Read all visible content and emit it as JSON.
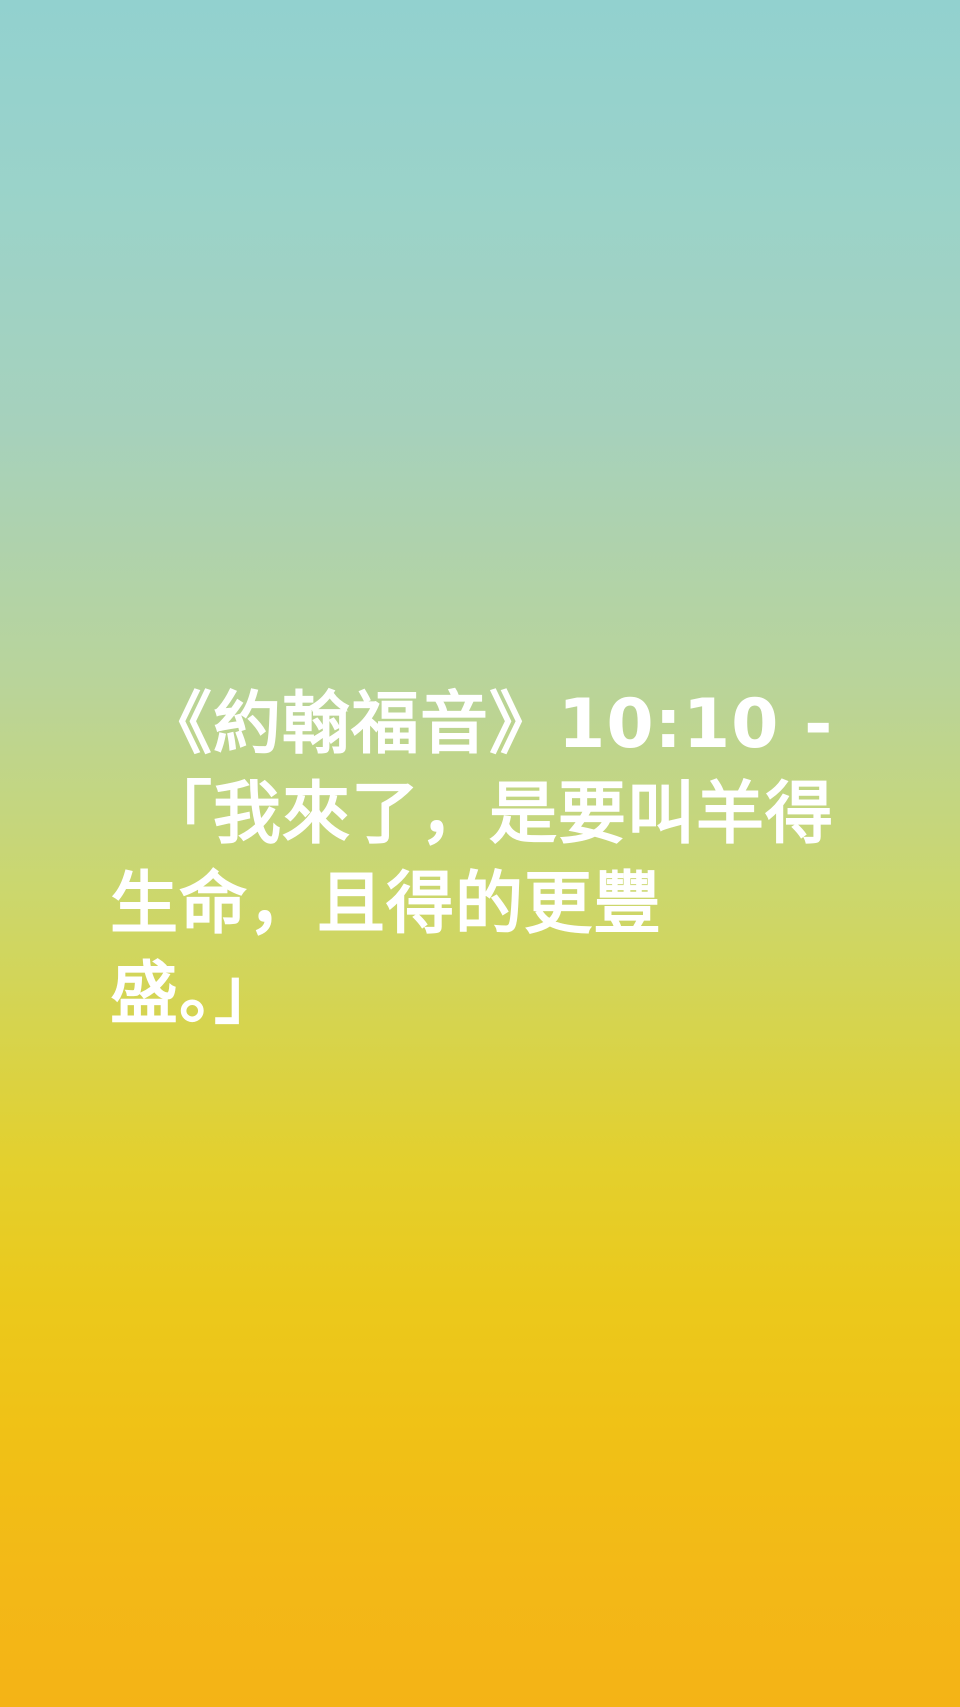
{
  "post": {
    "reference": "《約翰福音》10:10 -",
    "quote_lines": [
      "「我來了，是要叫羊得",
      "生命，且得的更豐",
      "盛。」"
    ]
  },
  "colors": {
    "gradient_top": "#92d1cf",
    "gradient_bottom": "#f4b316",
    "text": "#ffffff"
  }
}
